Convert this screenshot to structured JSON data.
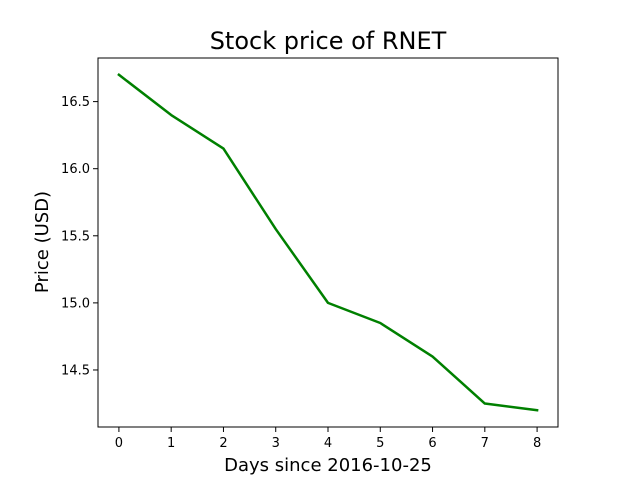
{
  "chart_data": {
    "type": "line",
    "title": "Stock price of RNET",
    "xlabel": "Days since 2016-10-25",
    "ylabel": "Price (USD)",
    "x": [
      0,
      1,
      2,
      3,
      4,
      5,
      6,
      7,
      8
    ],
    "series": [
      {
        "values": [
          16.7,
          16.4,
          16.15,
          15.55,
          15.0,
          14.85,
          14.6,
          14.25,
          14.2
        ],
        "color": "#008000"
      }
    ],
    "xlim": [
      -0.4,
      8.4
    ],
    "ylim": [
      14.075,
      16.825
    ],
    "x_ticks": [
      "0",
      "1",
      "2",
      "3",
      "4",
      "5",
      "6",
      "7",
      "8"
    ],
    "y_ticks": [
      "14.5",
      "15.0",
      "15.5",
      "16.0",
      "16.5"
    ],
    "grid": false,
    "legend": "none"
  }
}
